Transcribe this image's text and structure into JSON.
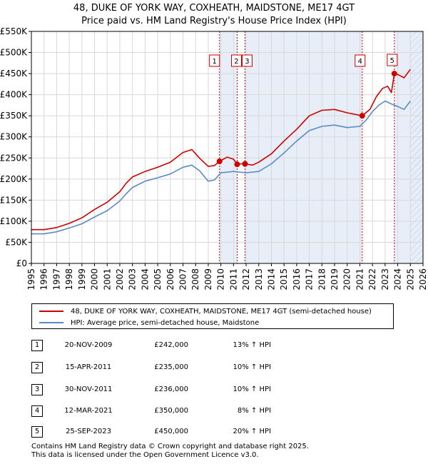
{
  "title": "48, DUKE OF YORK WAY, COXHEATH, MAIDSTONE, ME17 4GT",
  "subtitle": "Price paid vs. HM Land Registry's House Price Index (HPI)",
  "legend": {
    "property_label": "48, DUKE OF YORK WAY, COXHEATH, MAIDSTONE, ME17 4GT (semi-detached house)",
    "hpi_label": "HPI: Average price, semi-detached house, Maidstone"
  },
  "transactions": [
    {
      "num": "1",
      "date": "20-NOV-2009",
      "price": "£242,000",
      "hpi": "13% ↑ HPI"
    },
    {
      "num": "2",
      "date": "15-APR-2011",
      "price": "£235,000",
      "hpi": "10% ↑ HPI"
    },
    {
      "num": "3",
      "date": "30-NOV-2011",
      "price": "£236,000",
      "hpi": "10% ↑ HPI"
    },
    {
      "num": "4",
      "date": "12-MAR-2021",
      "price": "£350,000",
      "hpi": "8% ↑ HPI"
    },
    {
      "num": "5",
      "date": "25-SEP-2023",
      "price": "£450,000",
      "hpi": "20% ↑ HPI"
    }
  ],
  "footer": {
    "line1": "Contains HM Land Registry data © Crown copyright and database right 2025.",
    "line2": "This data is licensed under the Open Government Licence v3.0."
  },
  "colors": {
    "property": "#cc0000",
    "hpi": "#5b8ac6",
    "shade": "#e8eef8",
    "marker_line": "#cc0000"
  },
  "chart_data": {
    "type": "line",
    "x_ticks": [
      1995,
      1996,
      1997,
      1998,
      1999,
      2000,
      2001,
      2002,
      2003,
      2004,
      2005,
      2006,
      2007,
      2008,
      2009,
      2010,
      2011,
      2012,
      2013,
      2014,
      2015,
      2016,
      2017,
      2018,
      2019,
      2020,
      2021,
      2022,
      2023,
      2024,
      2025,
      2026
    ],
    "y_ticks": [
      {
        "v": 0,
        "label": "£0"
      },
      {
        "v": 50000,
        "label": "£50K"
      },
      {
        "v": 100000,
        "label": "£100K"
      },
      {
        "v": 150000,
        "label": "£150K"
      },
      {
        "v": 200000,
        "label": "£200K"
      },
      {
        "v": 250000,
        "label": "£250K"
      },
      {
        "v": 300000,
        "label": "£300K"
      },
      {
        "v": 350000,
        "label": "£350K"
      },
      {
        "v": 400000,
        "label": "£400K"
      },
      {
        "v": 450000,
        "label": "£450K"
      },
      {
        "v": 500000,
        "label": "£500K"
      },
      {
        "v": 550000,
        "label": "£550K"
      }
    ],
    "xlim": [
      1995,
      2026
    ],
    "ylim": [
      0,
      550000
    ],
    "grid": true,
    "shaded_ranges": [
      [
        2009.89,
        2011.29
      ],
      [
        2011.91,
        2021.19
      ],
      [
        2023.73,
        2026
      ]
    ],
    "hatched_from": 2025.0,
    "series": [
      {
        "name": "48, DUKE OF YORK WAY, COXHEATH, MAIDSTONE, ME17 4GT (semi-detached house)",
        "x": [
          1995.0,
          1996.0,
          1997.0,
          1998.0,
          1999.0,
          2000.0,
          2001.0,
          2002.0,
          2002.5,
          2003.0,
          2004.0,
          2005.0,
          2006.0,
          2007.0,
          2007.7,
          2008.3,
          2009.0,
          2009.5,
          2009.89,
          2010.5,
          2011.0,
          2011.29,
          2011.6,
          2011.91,
          2012.5,
          2013.0,
          2014.0,
          2015.0,
          2016.0,
          2017.0,
          2018.0,
          2019.0,
          2020.0,
          2021.19,
          2021.8,
          2022.3,
          2022.8,
          2023.2,
          2023.5,
          2023.73,
          2024.0,
          2024.5,
          2025.0
        ],
        "values": [
          80000,
          80000,
          85000,
          95000,
          108000,
          128000,
          145000,
          170000,
          190000,
          205000,
          218000,
          228000,
          240000,
          263000,
          270000,
          250000,
          230000,
          232000,
          242000,
          252000,
          247000,
          235000,
          236000,
          236000,
          233000,
          240000,
          260000,
          290000,
          318000,
          350000,
          363000,
          365000,
          357000,
          350000,
          365000,
          395000,
          415000,
          420000,
          405000,
          450000,
          448000,
          440000,
          460000
        ]
      },
      {
        "name": "HPI: Average price, semi-detached house, Maidstone",
        "x": [
          1995.0,
          1996.0,
          1997.0,
          1998.0,
          1999.0,
          2000.0,
          2001.0,
          2002.0,
          2002.5,
          2003.0,
          2004.0,
          2005.0,
          2006.0,
          2007.0,
          2007.7,
          2008.3,
          2009.0,
          2009.5,
          2010.0,
          2011.0,
          2012.0,
          2013.0,
          2014.0,
          2015.0,
          2016.0,
          2017.0,
          2018.0,
          2019.0,
          2020.0,
          2021.0,
          2021.5,
          2022.0,
          2022.5,
          2023.0,
          2023.5,
          2024.0,
          2024.5,
          2025.0
        ],
        "values": [
          70000,
          70000,
          75000,
          84000,
          94000,
          110000,
          125000,
          148000,
          165000,
          180000,
          195000,
          203000,
          212000,
          228000,
          233000,
          220000,
          195000,
          198000,
          215000,
          218000,
          215000,
          218000,
          236000,
          262000,
          290000,
          315000,
          325000,
          328000,
          322000,
          325000,
          340000,
          360000,
          375000,
          385000,
          378000,
          372000,
          365000,
          385000
        ]
      }
    ],
    "markers": [
      {
        "label": "1",
        "x": 2009.89,
        "y": 242000
      },
      {
        "label": "2",
        "x": 2011.29,
        "y": 235000
      },
      {
        "label": "3",
        "x": 2011.91,
        "y": 236000
      },
      {
        "label": "4",
        "x": 2021.19,
        "y": 350000
      },
      {
        "label": "5",
        "x": 2023.73,
        "y": 450000
      }
    ]
  }
}
